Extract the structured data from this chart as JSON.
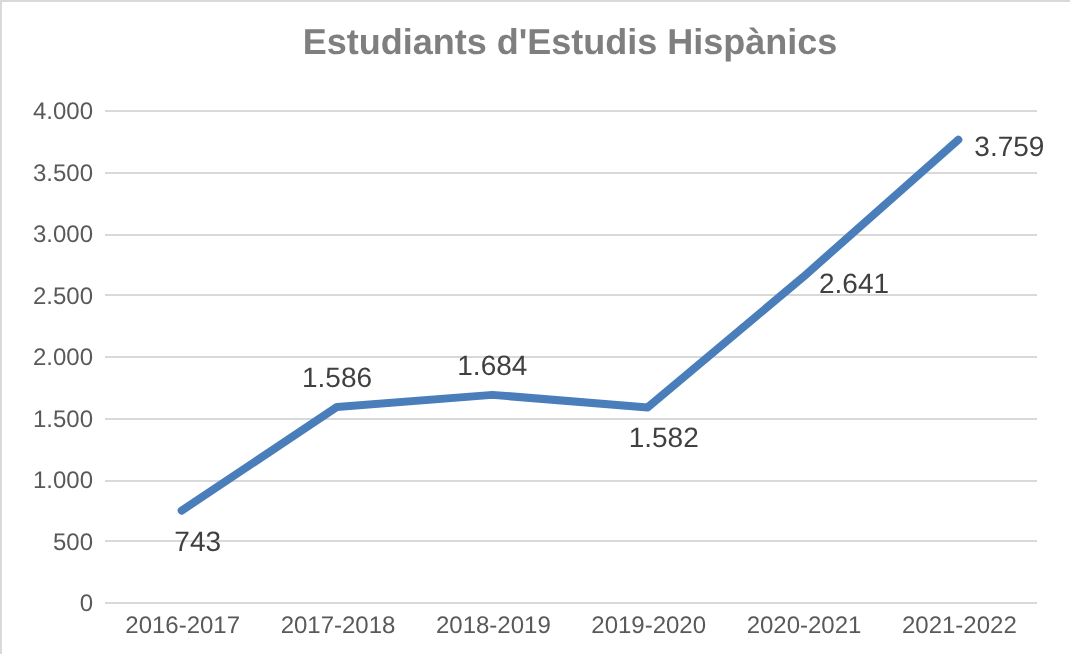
{
  "chart_data": {
    "type": "line",
    "title": "Estudiants d'Estudis Hispànics",
    "categories": [
      "2016-2017",
      "2017-2018",
      "2018-2019",
      "2019-2020",
      "2020-2021",
      "2021-2022"
    ],
    "series": [
      {
        "color": "#4a7ebb",
        "values": [
          743,
          1586,
          1684,
          1582,
          2641,
          3759
        ],
        "value_labels": [
          "743",
          "1.586",
          "1.684",
          "1.582",
          "2.641",
          "3.759"
        ]
      }
    ],
    "ylim": [
      0,
      4000
    ],
    "yticks": [
      {
        "value": 0,
        "label": "0"
      },
      {
        "value": 500,
        "label": "500"
      },
      {
        "value": 1000,
        "label": "1.000"
      },
      {
        "value": 1500,
        "label": "1.500"
      },
      {
        "value": 2000,
        "label": "2.000"
      },
      {
        "value": 2500,
        "label": "2.500"
      },
      {
        "value": 3000,
        "label": "3.000"
      },
      {
        "value": 3500,
        "label": "3.500"
      },
      {
        "value": 4000,
        "label": "4.000"
      }
    ],
    "grid": "y",
    "marker": "none",
    "line_style": "solid"
  }
}
